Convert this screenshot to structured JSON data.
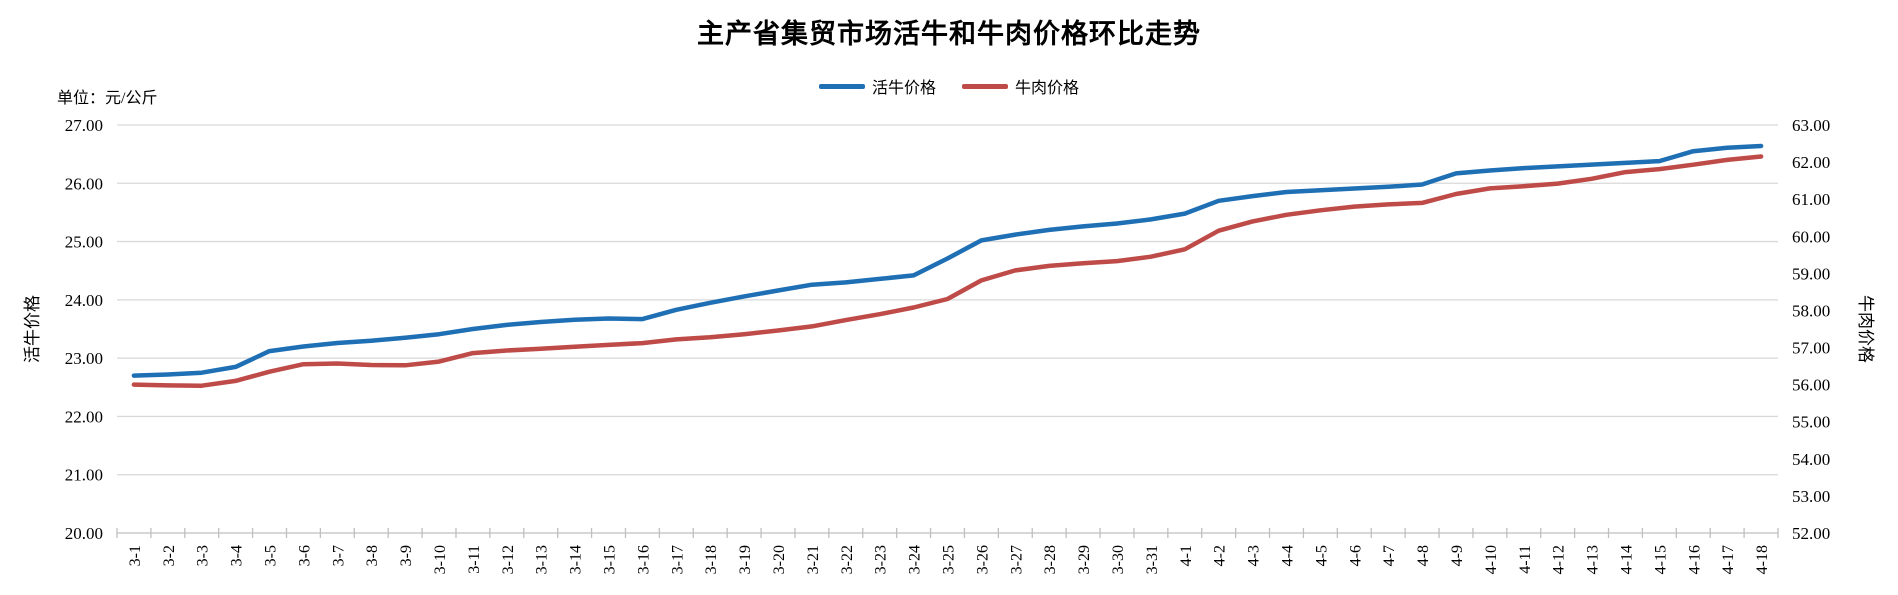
{
  "chart_data": {
    "type": "line",
    "title": "主产省集贸市场活牛和牛肉价格环比走势",
    "unit_label": "单位：元/公斤",
    "legend_position": "top",
    "grid": true,
    "categories": [
      "3-1",
      "3-2",
      "3-3",
      "3-4",
      "3-5",
      "3-6",
      "3-7",
      "3-8",
      "3-9",
      "3-10",
      "3-11",
      "3-12",
      "3-13",
      "3-14",
      "3-15",
      "3-16",
      "3-17",
      "3-18",
      "3-19",
      "3-20",
      "3-21",
      "3-22",
      "3-23",
      "3-24",
      "3-25",
      "3-26",
      "3-27",
      "3-28",
      "3-29",
      "3-30",
      "3-31",
      "4-1",
      "4-2",
      "4-3",
      "4-4",
      "4-5",
      "4-6",
      "4-7",
      "4-8",
      "4-9",
      "4-10",
      "4-11",
      "4-12",
      "4-13",
      "4-14",
      "4-15",
      "4-16",
      "4-17",
      "4-18"
    ],
    "series": [
      {
        "name": "活牛价格",
        "axis": "left",
        "color": "#1F6FB5",
        "values": [
          22.7,
          22.72,
          22.75,
          22.85,
          23.12,
          23.2,
          23.26,
          23.3,
          23.35,
          23.41,
          23.5,
          23.57,
          23.62,
          23.66,
          23.68,
          23.67,
          23.83,
          23.95,
          24.06,
          24.16,
          24.26,
          24.3,
          24.36,
          24.42,
          24.71,
          25.02,
          25.12,
          25.2,
          25.26,
          25.31,
          25.38,
          25.48,
          25.7,
          25.78,
          25.85,
          25.88,
          25.91,
          25.94,
          25.98,
          26.17,
          26.22,
          26.26,
          26.29,
          26.32,
          26.35,
          26.38,
          26.55,
          26.61,
          26.64
        ]
      },
      {
        "name": "牛肉价格",
        "axis": "right",
        "color": "#BE4B48",
        "values": [
          56.0,
          55.98,
          55.97,
          56.1,
          56.35,
          56.55,
          56.57,
          56.53,
          56.52,
          56.62,
          56.85,
          56.92,
          56.97,
          57.02,
          57.07,
          57.12,
          57.22,
          57.28,
          57.36,
          57.46,
          57.57,
          57.74,
          57.9,
          58.08,
          58.31,
          58.81,
          59.08,
          59.2,
          59.27,
          59.33,
          59.45,
          59.65,
          60.15,
          60.4,
          60.58,
          60.7,
          60.8,
          60.86,
          60.9,
          61.14,
          61.29,
          61.35,
          61.42,
          61.55,
          61.73,
          61.81,
          61.93,
          62.06,
          62.15
        ]
      }
    ],
    "left_axis": {
      "title": "活牛价格",
      "min": 20,
      "max": 27,
      "step": 1,
      "tick_format": "2dp"
    },
    "right_axis": {
      "title": "牛肉价格",
      "min": 52,
      "max": 63,
      "step": 1,
      "tick_format": "2dp"
    },
    "colors": {
      "gridline": "#D9D9D9",
      "axis": "#BFBFBF",
      "text": "#000000",
      "background": "#FFFFFF"
    }
  }
}
